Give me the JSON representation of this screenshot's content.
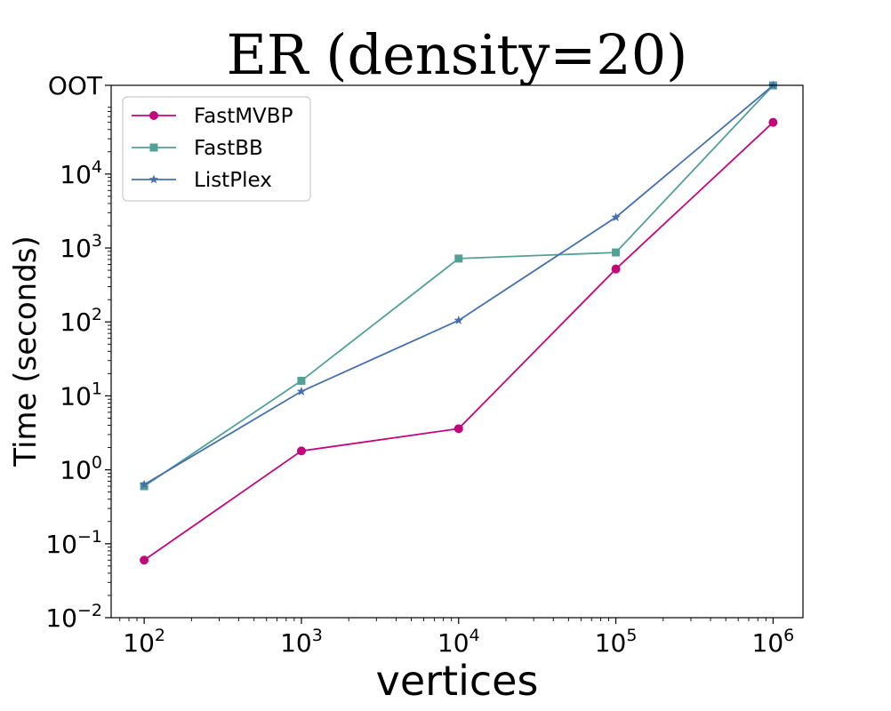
{
  "chart_data": {
    "type": "line",
    "title": "ER (density=20)",
    "xlabel": "vertices",
    "ylabel": "Time (seconds)",
    "xscale": "log",
    "yscale": "log",
    "x": [
      100,
      1000,
      10000,
      100000,
      1000000
    ],
    "xlim_exp": [
      1.79,
      6.19
    ],
    "ylim_exp": [
      -2,
      5.2
    ],
    "x_ticks": [
      {
        "base": "10",
        "exp": "2",
        "value_exp": 2
      },
      {
        "base": "10",
        "exp": "3",
        "value_exp": 3
      },
      {
        "base": "10",
        "exp": "4",
        "value_exp": 4
      },
      {
        "base": "10",
        "exp": "5",
        "value_exp": 5
      },
      {
        "base": "10",
        "exp": "6",
        "value_exp": 6
      }
    ],
    "y_ticks": [
      {
        "base": "10",
        "exp": "−2",
        "value_exp": -2
      },
      {
        "base": "10",
        "exp": "−1",
        "value_exp": -1
      },
      {
        "base": "10",
        "exp": "0",
        "value_exp": 0
      },
      {
        "base": "10",
        "exp": "1",
        "value_exp": 1
      },
      {
        "base": "10",
        "exp": "2",
        "value_exp": 2
      },
      {
        "base": "10",
        "exp": "3",
        "value_exp": 3
      },
      {
        "base": "10",
        "exp": "4",
        "value_exp": 4
      },
      {
        "base": "OOT",
        "exp": "",
        "value_exp": 5.2
      }
    ],
    "legend_position": "top-left",
    "series": [
      {
        "name": "FastMVBP",
        "marker": "circle",
        "color": "#c2077d",
        "values": [
          0.06,
          1.8,
          3.6,
          520,
          50000
        ]
      },
      {
        "name": "FastBB",
        "marker": "square",
        "color": "#53a196",
        "values": [
          0.6,
          16,
          720,
          870,
          158000
        ]
      },
      {
        "name": "ListPlex",
        "marker": "star",
        "color": "#4570ae",
        "values": [
          0.63,
          11.5,
          105,
          2600,
          158000
        ]
      }
    ]
  }
}
